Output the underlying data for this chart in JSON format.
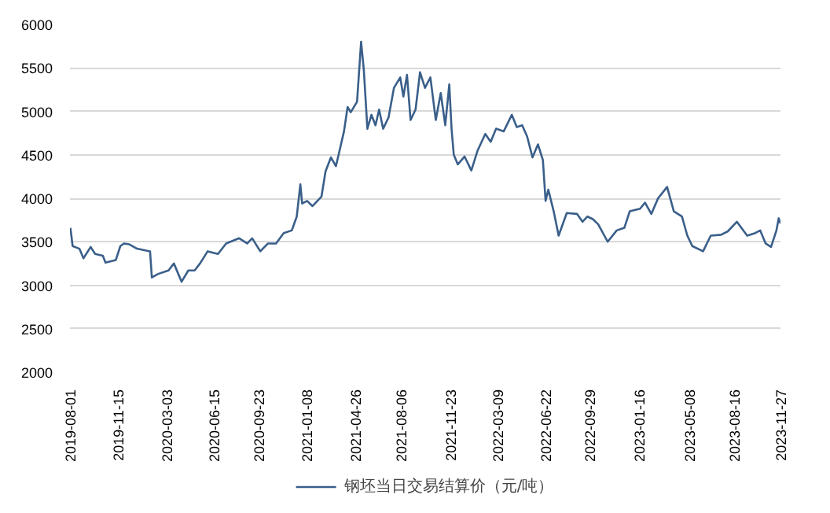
{
  "chart_data": {
    "type": "line",
    "x": [
      "2019-08-02",
      "2019-08-07",
      "2019-08-22",
      "2019-08-31",
      "2019-09-16",
      "2019-09-26",
      "2019-10-13",
      "2019-10-19",
      "2019-11-11",
      "2019-11-21",
      "2019-11-29",
      "2019-12-11",
      "2019-12-28",
      "2020-01-26",
      "2020-01-30",
      "2020-02-13",
      "2020-03-07",
      "2020-03-19",
      "2020-04-05",
      "2020-04-20",
      "2020-05-04",
      "2020-05-16",
      "2020-06-02",
      "2020-06-25",
      "2020-07-13",
      "2020-08-11",
      "2020-08-29",
      "2020-09-09",
      "2020-09-27",
      "2020-10-14",
      "2020-11-01",
      "2020-11-18",
      "2020-12-06",
      "2020-12-17",
      "2020-12-25",
      "2020-12-29",
      "2021-01-09",
      "2021-01-21",
      "2021-02-10",
      "2021-02-19",
      "2021-03-03",
      "2021-03-14",
      "2021-03-20",
      "2021-04-01",
      "2021-04-09",
      "2021-04-16",
      "2021-04-30",
      "2021-05-09",
      "2021-05-15",
      "2021-05-23",
      "2021-06-01",
      "2021-06-10",
      "2021-06-18",
      "2021-06-27",
      "2021-07-09",
      "2021-07-21",
      "2021-08-04",
      "2021-08-11",
      "2021-08-19",
      "2021-08-27",
      "2021-09-07",
      "2021-09-17",
      "2021-09-28",
      "2021-10-10",
      "2021-10-22",
      "2021-11-02",
      "2021-11-12",
      "2021-11-21",
      "2021-11-26",
      "2021-12-01",
      "2021-12-10",
      "2021-12-25",
      "2022-01-09",
      "2022-01-23",
      "2022-02-09",
      "2022-02-21",
      "2022-03-05",
      "2022-03-22",
      "2022-04-09",
      "2022-04-20",
      "2022-05-02",
      "2022-05-13",
      "2022-05-25",
      "2022-06-06",
      "2022-06-17",
      "2022-06-23",
      "2022-06-29",
      "2022-07-11",
      "2022-07-22",
      "2022-08-09",
      "2022-09-01",
      "2022-09-13",
      "2022-09-24",
      "2022-10-06",
      "2022-10-18",
      "2022-11-08",
      "2022-11-28",
      "2022-12-15",
      "2022-12-27",
      "2023-01-19",
      "2023-01-30",
      "2023-02-13",
      "2023-02-28",
      "2023-03-20",
      "2023-04-04",
      "2023-04-22",
      "2023-05-04",
      "2023-05-15",
      "2023-06-08",
      "2023-06-25",
      "2023-07-18",
      "2023-08-02",
      "2023-08-22",
      "2023-09-14",
      "2023-10-02",
      "2023-10-13",
      "2023-10-25",
      "2023-11-06",
      "2023-11-18",
      "2023-11-23",
      "2023-11-27"
    ],
    "series": [
      {
        "name": "钢坯当日交易结算价（元/吨）",
        "color": "#3a5f8a",
        "values": [
          3660,
          3450,
          3420,
          3310,
          3440,
          3360,
          3340,
          3260,
          3290,
          3450,
          3480,
          3470,
          3420,
          3390,
          3090,
          3130,
          3170,
          3250,
          3040,
          3170,
          3170,
          3250,
          3390,
          3360,
          3480,
          3540,
          3480,
          3540,
          3390,
          3480,
          3480,
          3600,
          3630,
          3790,
          4160,
          3940,
          3970,
          3910,
          4020,
          4310,
          4470,
          4370,
          4500,
          4770,
          5050,
          4990,
          5110,
          5800,
          5480,
          4800,
          4960,
          4840,
          5020,
          4800,
          4930,
          5270,
          5390,
          5170,
          5420,
          4900,
          5020,
          5450,
          5270,
          5390,
          4900,
          5210,
          4840,
          5310,
          4800,
          4500,
          4390,
          4480,
          4320,
          4550,
          4740,
          4650,
          4800,
          4770,
          4960,
          4820,
          4840,
          4710,
          4470,
          4620,
          4440,
          3970,
          4100,
          3850,
          3570,
          3830,
          3820,
          3730,
          3790,
          3760,
          3700,
          3500,
          3630,
          3660,
          3850,
          3880,
          3950,
          3820,
          4000,
          4130,
          3850,
          3790,
          3570,
          3450,
          3390,
          3570,
          3580,
          3620,
          3730,
          3570,
          3600,
          3630,
          3480,
          3440,
          3630,
          3770,
          3710
        ]
      }
    ],
    "xlim": [
      "2019-08-01",
      "2023-11-27"
    ],
    "xticks": [
      "2019-08-01",
      "2019-11-15",
      "2020-03-03",
      "2020-06-15",
      "2020-09-23",
      "2021-01-08",
      "2021-04-26",
      "2021-08-06",
      "2021-11-23",
      "2022-03-09",
      "2022-06-22",
      "2022-09-29",
      "2023-01-16",
      "2023-05-08",
      "2023-08-16",
      "2023-11-27"
    ],
    "ylim": [
      2000,
      6000
    ],
    "yticks": [
      2000,
      2500,
      3000,
      3500,
      4000,
      4500,
      5000,
      5500,
      6000
    ],
    "grid": "y",
    "legend": "bottom"
  }
}
